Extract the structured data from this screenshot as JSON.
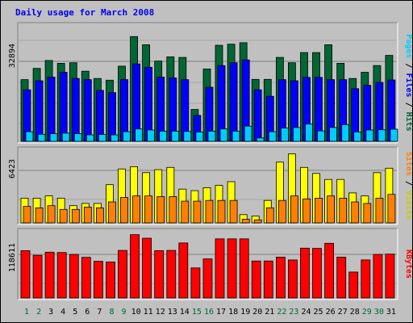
{
  "chart_data": [
    {
      "type": "bar",
      "title": "Daily usage for March 2008",
      "categories": [
        "1",
        "2",
        "3",
        "4",
        "5",
        "6",
        "7",
        "8",
        "9",
        "10",
        "11",
        "12",
        "13",
        "14",
        "15",
        "16",
        "17",
        "18",
        "19",
        "20",
        "21",
        "22",
        "23",
        "24",
        "25",
        "26",
        "27",
        "28",
        "29",
        "30",
        "31"
      ],
      "weekend_days": [
        "1",
        "2",
        "8",
        "9",
        "15",
        "16",
        "22",
        "23",
        "29",
        "30"
      ],
      "ylabel_parts": [
        "Pages",
        "Files",
        "Hits"
      ],
      "y_tick_label": "32894",
      "ylim": [
        0,
        41000
      ],
      "series": [
        {
          "name": "Hits",
          "color": "#006633",
          "values": [
            21900,
            25900,
            28700,
            27700,
            27900,
            24900,
            22300,
            21700,
            26700,
            37200,
            34300,
            28500,
            30000,
            29800,
            11300,
            25700,
            34100,
            34500,
            35000,
            22000,
            22000,
            29800,
            27900,
            31500,
            31500,
            34300,
            27700,
            22300,
            24500,
            26900,
            30500
          ]
        },
        {
          "name": "Files",
          "color": "#0000ff",
          "values": [
            18300,
            21500,
            22800,
            24500,
            22300,
            21900,
            18100,
            17300,
            21900,
            27500,
            26300,
            22800,
            22500,
            21900,
            9200,
            19200,
            26900,
            27900,
            28900,
            18300,
            16000,
            21900,
            21500,
            22700,
            22700,
            21900,
            21900,
            18700,
            19900,
            20900,
            21800
          ]
        },
        {
          "name": "Pages",
          "color": "#00ccff",
          "values": [
            3400,
            2500,
            2700,
            2900,
            2700,
            2300,
            2400,
            2300,
            3400,
            4400,
            4000,
            3600,
            3600,
            3500,
            3300,
            3600,
            4400,
            3600,
            5400,
            1200,
            3400,
            4700,
            4900,
            6100,
            3700,
            4900,
            5900,
            3300,
            4000,
            4100,
            4300
          ]
        }
      ]
    },
    {
      "type": "bar",
      "ylabel_parts": [
        "Sites",
        "Visits"
      ],
      "y_tick_label": "6423",
      "ylim": [
        0,
        9700
      ],
      "series": [
        {
          "name": "Visits",
          "color": "#ffff00",
          "values": [
            3300,
            3300,
            3600,
            3300,
            2300,
            2600,
            2600,
            5100,
            7200,
            7500,
            6700,
            7100,
            7400,
            4500,
            4300,
            4700,
            5000,
            5500,
            1100,
            900,
            3000,
            8100,
            9200,
            7400,
            6600,
            5800,
            5800,
            4000,
            3600,
            6700,
            7300
          ]
        },
        {
          "name": "Sites",
          "color": "#ff8000",
          "values": [
            2200,
            2000,
            2300,
            1800,
            1800,
            2100,
            2000,
            2800,
            3400,
            3600,
            3600,
            3500,
            3500,
            2900,
            2900,
            3000,
            3000,
            3000,
            500,
            400,
            2000,
            3000,
            3600,
            3200,
            3300,
            3600,
            3300,
            2800,
            2600,
            3300,
            3800
          ]
        }
      ]
    },
    {
      "type": "bar",
      "ylabel": "KBytes",
      "y_tick_label": "118611",
      "ylim": [
        0,
        166000
      ],
      "series": [
        {
          "name": "KBytes",
          "color": "#ff0000",
          "values": [
            118600,
            106800,
            114800,
            114000,
            109200,
            101800,
            91900,
            90300,
            119300,
            158700,
            149800,
            118600,
            119300,
            137900,
            75400,
            97900,
            148200,
            148200,
            148200,
            92700,
            92700,
            102500,
            95400,
            125000,
            124200,
            137100,
            102500,
            65000,
            95400,
            109200,
            110000
          ]
        }
      ]
    }
  ]
}
